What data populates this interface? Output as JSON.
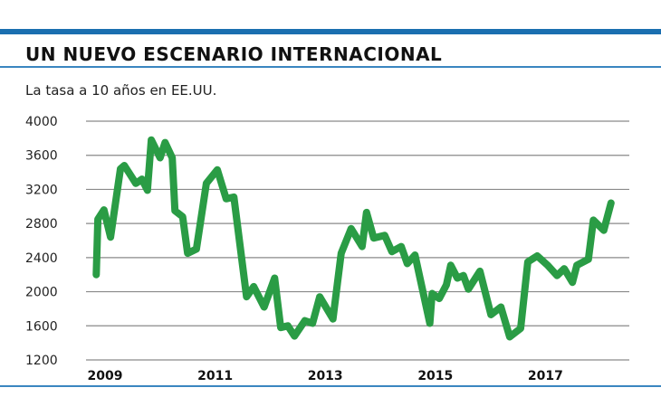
{
  "title": "UN NUEVO ESCENARIO INTERNACIONAL",
  "chart_data": {
    "type": "line",
    "title": "UN NUEVO ESCENARIO INTERNACIONAL",
    "subtitle": "La tasa a 10 años en EE.UU.",
    "xlabel": "",
    "ylabel": "",
    "ylim": [
      1200,
      4000
    ],
    "yticks": [
      4000,
      3600,
      3200,
      2800,
      2400,
      2000,
      1600,
      1200
    ],
    "xticks": [
      "2009",
      "2011",
      "2013",
      "2015",
      "2017"
    ],
    "grid": true,
    "line_color": "#2a9c45",
    "accent_color": "#1a6fb0",
    "x": [
      2008.84,
      2008.87,
      2008.98,
      2009.1,
      2009.28,
      2009.35,
      2009.44,
      2009.56,
      2009.67,
      2009.77,
      2009.84,
      2010.0,
      2010.09,
      2010.22,
      2010.27,
      2010.41,
      2010.5,
      2010.66,
      2010.84,
      2011.04,
      2011.2,
      2011.34,
      2011.57,
      2011.7,
      2011.89,
      2012.08,
      2012.19,
      2012.32,
      2012.44,
      2012.63,
      2012.77,
      2012.9,
      2013.14,
      2013.29,
      2013.47,
      2013.67,
      2013.75,
      2013.88,
      2014.08,
      2014.21,
      2014.38,
      2014.49,
      2014.63,
      2014.9,
      2014.94,
      2015.07,
      2015.2,
      2015.28,
      2015.4,
      2015.51,
      2015.6,
      2015.81,
      2016.01,
      2016.19,
      2016.35,
      2016.55,
      2016.68,
      2016.85,
      2017.04,
      2017.21,
      2017.34,
      2017.49,
      2017.57,
      2017.78,
      2017.87,
      2018.06,
      2018.19
    ],
    "values": [
      2200,
      2850,
      2960,
      2640,
      3440,
      3480,
      3390,
      3270,
      3320,
      3190,
      3780,
      3570,
      3750,
      3570,
      2950,
      2880,
      2450,
      2500,
      3270,
      3430,
      3090,
      3110,
      1940,
      2060,
      1820,
      2160,
      1580,
      1600,
      1480,
      1660,
      1630,
      1940,
      1680,
      2450,
      2740,
      2530,
      2930,
      2630,
      2660,
      2470,
      2530,
      2330,
      2430,
      1630,
      1980,
      1920,
      2080,
      2310,
      2160,
      2190,
      2030,
      2240,
      1730,
      1820,
      1470,
      1570,
      2350,
      2420,
      2310,
      2190,
      2270,
      2110,
      2310,
      2380,
      2840,
      2720,
      3040
    ]
  }
}
